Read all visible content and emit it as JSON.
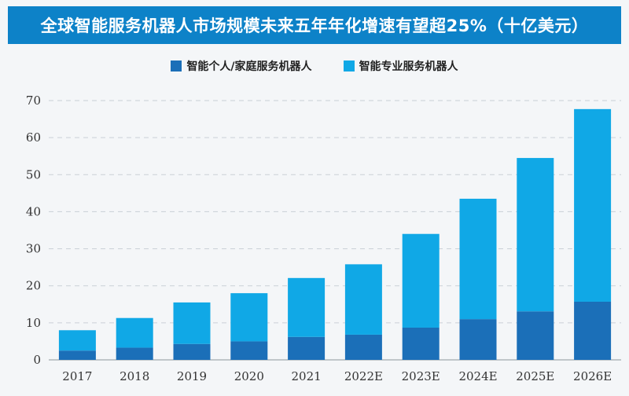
{
  "title": "全球智能服务机器人市场规模未来五年年化增速有望超25%（十亿美元）",
  "chart_data": {
    "type": "bar",
    "stacked": true,
    "categories": [
      "2017",
      "2018",
      "2019",
      "2020",
      "2021",
      "2022E",
      "2023E",
      "2024E",
      "2025E",
      "2026E"
    ],
    "series": [
      {
        "name": "智能个人/家庭服务机器人",
        "color": "#1b6fb8",
        "values": [
          2.5,
          3.3,
          4.3,
          5.0,
          6.2,
          6.8,
          8.7,
          11.0,
          13.1,
          15.7
        ]
      },
      {
        "name": "智能专业服务机器人",
        "color": "#10a8e6",
        "values": [
          5.5,
          8.0,
          11.2,
          13.0,
          15.9,
          19.0,
          25.3,
          32.5,
          41.4,
          52.0
        ]
      }
    ],
    "ylim": [
      0,
      70
    ],
    "yticks": [
      0,
      10,
      20,
      30,
      40,
      50,
      60,
      70
    ],
    "grid": true,
    "legend_position": "top-center"
  }
}
